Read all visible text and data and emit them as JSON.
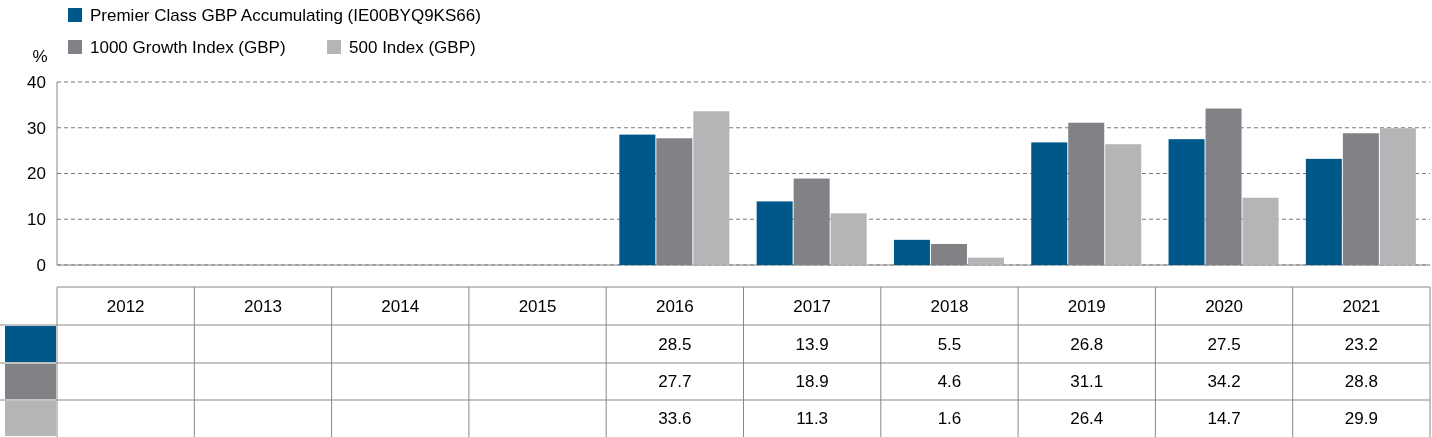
{
  "chart_data": {
    "type": "bar",
    "ylabel": "%",
    "categories": [
      "2012",
      "2013",
      "2014",
      "2015",
      "2016",
      "2017",
      "2018",
      "2019",
      "2020",
      "2021"
    ],
    "series": [
      {
        "name": "Premier Class GBP Accumulating (IE00BYQ9KS66)",
        "color": "#00578a",
        "values": [
          null,
          null,
          null,
          null,
          28.5,
          13.9,
          5.5,
          26.8,
          27.5,
          23.2
        ]
      },
      {
        "name": "1000 Growth Index (GBP)",
        "color": "#808285",
        "values": [
          null,
          null,
          null,
          null,
          27.7,
          18.9,
          4.6,
          31.1,
          34.2,
          28.8
        ]
      },
      {
        "name": "500 Index (GBP)",
        "color": "#b4b5b6",
        "values": [
          null,
          null,
          null,
          null,
          33.6,
          11.3,
          1.6,
          26.4,
          14.7,
          29.9
        ]
      }
    ],
    "ylim": [
      0,
      40
    ],
    "yticks": [
      0,
      10,
      20,
      30,
      40
    ],
    "grid": "y",
    "legend": "top left",
    "data_labels": true
  }
}
